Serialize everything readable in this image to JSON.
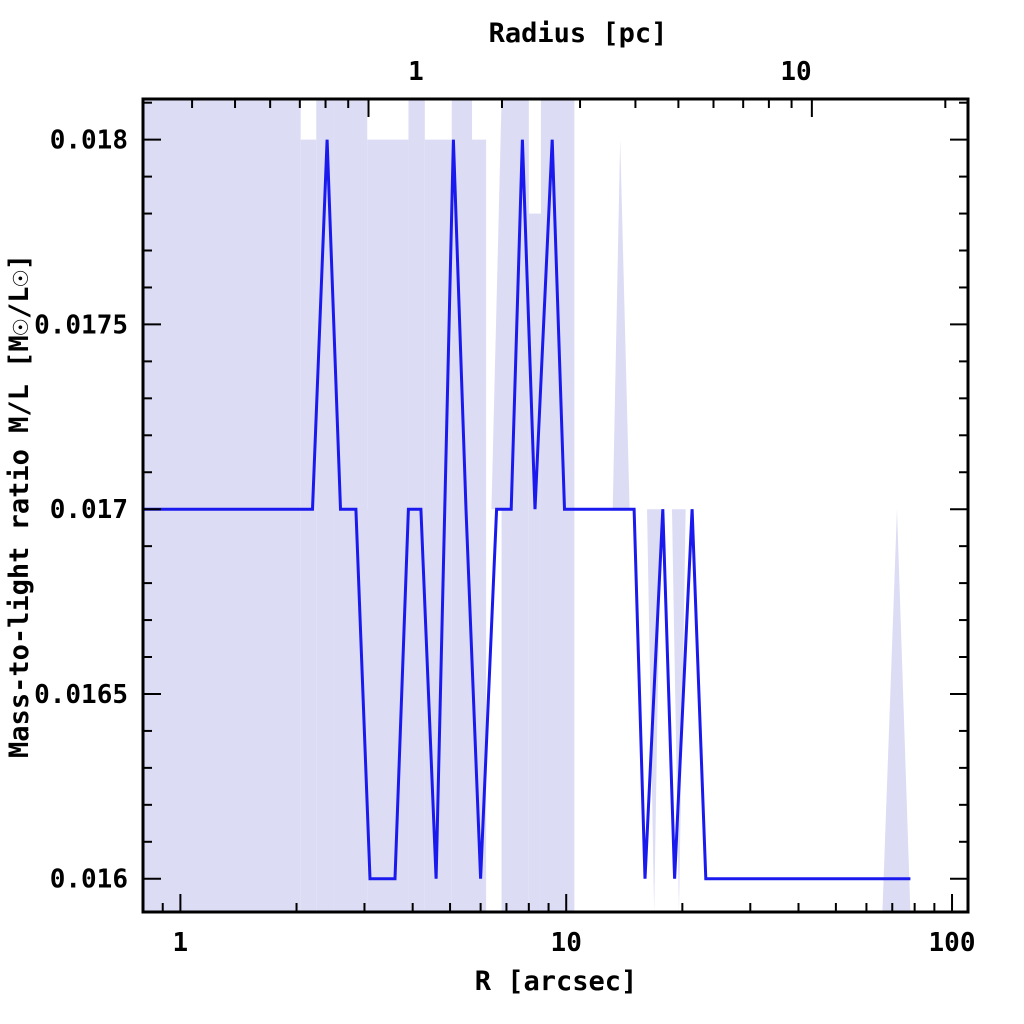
{
  "chart_data": {
    "type": "line",
    "xscale": "log",
    "xlabel": "R [arcsec]",
    "ylabel": "Mass-to-light ratio M/L [M☉/L☉]",
    "top_xlabel": "Radius [pc]",
    "xlim": [
      0.8,
      110
    ],
    "ylim": [
      0.01591,
      0.01811
    ],
    "x_ticks": [
      1,
      10,
      100
    ],
    "x_tick_labels": [
      "1",
      "10",
      "100"
    ],
    "y_ticks": [
      0.016,
      0.0165,
      0.017,
      0.0175,
      0.018
    ],
    "y_tick_labels": [
      "0.016",
      "0.0165",
      "0.017",
      "0.0175",
      "0.018"
    ],
    "top_ticks_arcsec": [
      1.0,
      10.0
    ],
    "top_tick_labels": [
      "1",
      "10"
    ],
    "line_color": "#1a1aee",
    "band_color": "#dcdcf5",
    "series": [
      {
        "x": [
          0.8,
          2.2,
          2.4,
          2.6,
          2.85,
          3.1,
          3.6,
          3.9,
          4.2,
          4.6,
          5.1,
          5.5,
          6.0,
          6.6,
          7.2,
          7.7,
          8.3,
          9.2,
          9.9,
          15.0,
          16.0,
          17.8,
          19.1,
          21.2,
          23.0,
          78.0
        ],
        "y": [
          0.017,
          0.017,
          0.018,
          0.017,
          0.017,
          0.016,
          0.016,
          0.017,
          0.017,
          0.016,
          0.018,
          0.017,
          0.016,
          0.017,
          0.017,
          0.018,
          0.017,
          0.018,
          0.017,
          0.017,
          0.016,
          0.017,
          0.016,
          0.017,
          0.016,
          0.016
        ]
      }
    ],
    "bands": [
      {
        "x": [
          0.8,
          2.05
        ],
        "y_low": 0.01591,
        "y_high": 0.01811
      },
      {
        "x": [
          2.05,
          2.25
        ],
        "y_low": 0.01591,
        "y_high": 0.018
      },
      {
        "x": [
          2.25,
          2.5
        ],
        "y_low": 0.01591,
        "y_high": 0.01811
      },
      {
        "x": [
          2.5,
          3.05
        ],
        "y_low": 0.01591,
        "y_high": 0.01811
      },
      {
        "x": [
          3.05,
          3.9
        ],
        "y_low": 0.01591,
        "y_high": 0.018
      },
      {
        "x": [
          3.9,
          4.3
        ],
        "y_low": 0.01591,
        "y_high": 0.01811
      },
      {
        "x": [
          4.3,
          5.05
        ],
        "y_low": 0.01591,
        "y_high": 0.018
      },
      {
        "x": [
          5.05,
          5.7
        ],
        "y_low": 0.01591,
        "y_high": 0.01811
      },
      {
        "x": [
          5.7,
          6.2
        ],
        "y_low": 0.01591,
        "y_high": 0.018
      },
      {
        "x": [
          6.8,
          8.0
        ],
        "y_low": 0.01591,
        "y_high": 0.01811
      },
      {
        "x": [
          8.0,
          8.6
        ],
        "y_low": 0.01591,
        "y_high": 0.0178
      },
      {
        "x": [
          8.6,
          10.5
        ],
        "y_low": 0.01591,
        "y_high": 0.01811
      }
    ],
    "spikes": [
      {
        "x": [
          2.9,
          3.15,
          3.35
        ],
        "y_base": 0.017,
        "y_peak": 0.01611,
        "dir": "down"
      },
      {
        "x": [
          4.5,
          4.7,
          4.9
        ],
        "y_base": 0.017,
        "y_peak": 0.01591,
        "dir": "down"
      },
      {
        "x": [
          6.4,
          6.8,
          7.0
        ],
        "y_base": 0.017,
        "y_peak": 0.01811,
        "dir": "up"
      },
      {
        "x": [
          13.2,
          13.8,
          14.6
        ],
        "y_base": 0.017,
        "y_peak": 0.018,
        "dir": "up"
      },
      {
        "x": [
          16.2,
          16.9,
          17.6
        ],
        "y_base": 0.017,
        "y_peak": 0.01591,
        "dir": "down"
      },
      {
        "x": [
          18.8,
          19.6,
          20.4
        ],
        "y_base": 0.017,
        "y_peak": 0.01591,
        "dir": "down"
      },
      {
        "x": [
          66.0,
          72.0,
          78.0
        ],
        "y_base": 0.01591,
        "y_peak": 0.017,
        "dir": "up"
      }
    ],
    "grid": false,
    "legend": "none"
  }
}
